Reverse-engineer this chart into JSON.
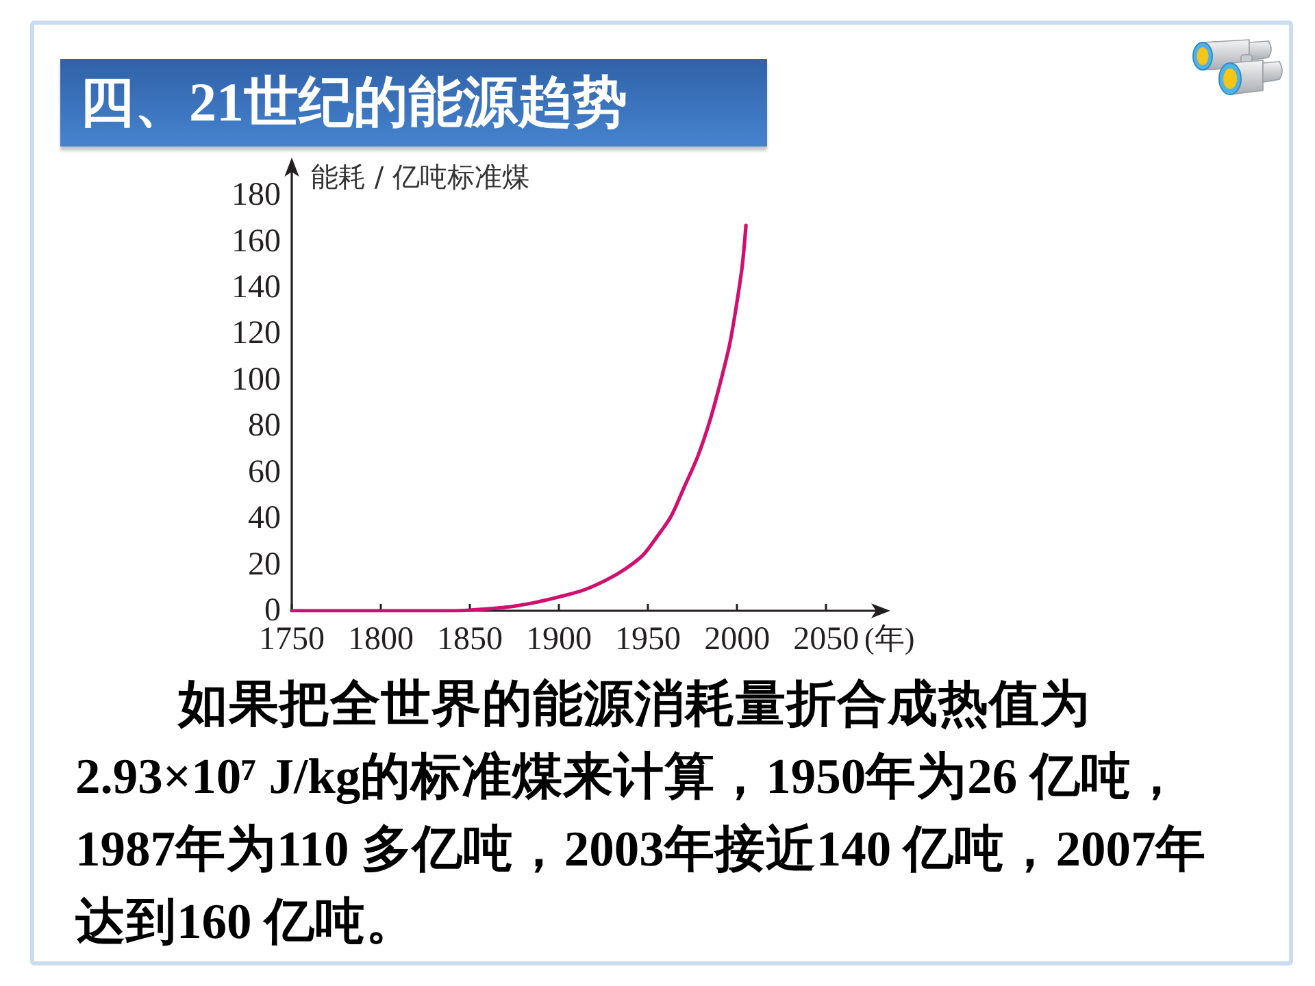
{
  "chart_data": {
    "type": "line",
    "title": "四、21世纪的能源趋势",
    "ylabel": "能耗 / 亿吨标准煤",
    "xlabel": "(年)",
    "annotations": [
      "如果把全世界的能源消耗量折合成热值为2.93×10⁷ J/kg的标准煤来计算，1950年为26 亿吨，1987年为110 多亿吨，2003年接近140 亿吨，2007年达到160 亿吨。"
    ],
    "x": [
      1750,
      1800,
      1840,
      1850,
      1870,
      1886,
      1900,
      1914,
      1927,
      1937,
      1947,
      1955,
      1963,
      1970,
      1978,
      1985,
      1991,
      1996,
      2000,
      2003,
      2005
    ],
    "series": [
      {
        "color": "#d0106f",
        "values": [
          0,
          0,
          0,
          0.3,
          1.5,
          3.5,
          6,
          9,
          13.5,
          18,
          24,
          32,
          41,
          53,
          67,
          83,
          100,
          116,
          134,
          150,
          167
        ]
      }
    ],
    "xlim": [
      1750,
      2083
    ],
    "ylim": [
      0,
      194
    ],
    "xticks": [
      1750,
      1800,
      1850,
      1900,
      1950,
      2000,
      2050
    ],
    "yticks": [
      0,
      20,
      40,
      60,
      80,
      100,
      120,
      140,
      160,
      180
    ],
    "marker": "none",
    "line_style": "solid"
  }
}
